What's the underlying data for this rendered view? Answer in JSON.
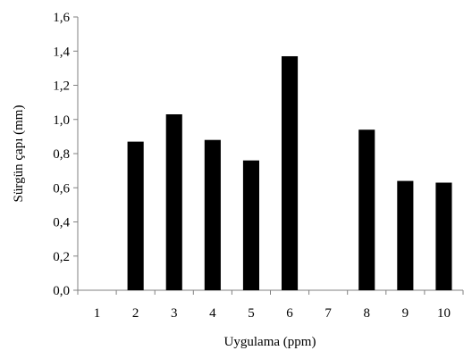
{
  "chart_data": {
    "type": "bar",
    "categories": [
      "1",
      "2",
      "3",
      "4",
      "5",
      "6",
      "7",
      "8",
      "9",
      "10"
    ],
    "values": [
      0,
      0.87,
      1.03,
      0.88,
      0.76,
      1.37,
      0,
      0.94,
      0.64,
      0.63
    ],
    "xlabel": "Uygulama (ppm)",
    "ylabel": "Sürgün çapı (mm)",
    "ylim": [
      0,
      1.6
    ],
    "yticks": [
      "0,0",
      "0,2",
      "0,4",
      "0,6",
      "0,8",
      "1,0",
      "1,2",
      "1,4",
      "1,6"
    ],
    "grid": false,
    "legend": "none",
    "bar_color": "#000000"
  }
}
